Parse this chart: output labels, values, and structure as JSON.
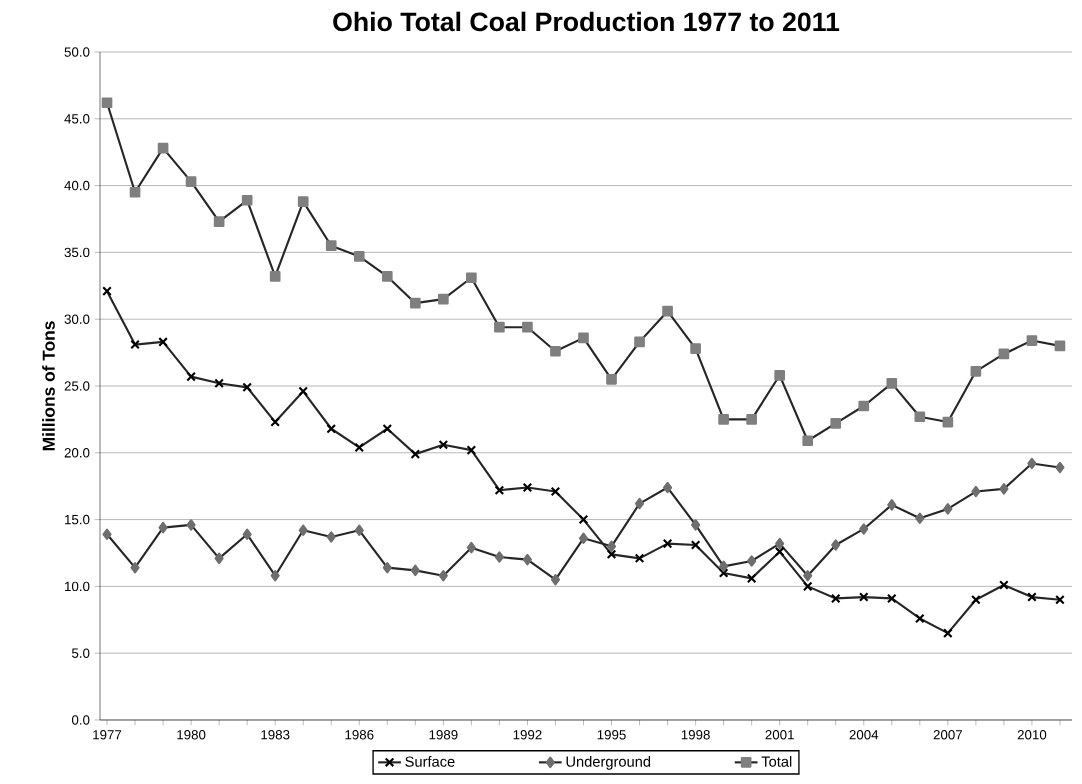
{
  "chart_data": {
    "type": "line",
    "title": "Ohio Total Coal Production   1977 to 2011",
    "ylabel": "Millions of Tons",
    "categories": [
      "1977",
      null,
      null,
      "1980",
      null,
      null,
      "1983",
      null,
      null,
      "1986",
      null,
      null,
      "1989",
      null,
      null,
      "1992",
      null,
      null,
      "1995",
      null,
      null,
      "1998",
      null,
      null,
      "2001",
      null,
      null,
      "2004",
      null,
      null,
      "2007",
      null,
      null,
      "2010",
      null
    ],
    "series": [
      {
        "name": "Surface",
        "color": "#333333",
        "marker": "cross",
        "values": [
          32.1,
          28.1,
          28.3,
          25.7,
          25.2,
          24.9,
          22.3,
          24.6,
          21.8,
          20.4,
          21.8,
          19.9,
          20.6,
          20.2,
          17.2,
          17.4,
          17.1,
          15.0,
          12.4,
          12.1,
          13.2,
          13.1,
          11.0,
          10.6,
          12.6,
          10.0,
          9.1,
          9.2,
          9.1,
          7.6,
          6.5,
          9.0,
          10.1,
          9.2,
          9.0
        ]
      },
      {
        "name": "Underground",
        "color": "#6e6e6e",
        "marker": "diamond",
        "values": [
          13.9,
          11.4,
          14.4,
          14.6,
          12.1,
          13.9,
          10.8,
          14.2,
          13.7,
          14.2,
          11.4,
          11.2,
          10.8,
          12.9,
          12.2,
          12.0,
          10.5,
          13.6,
          13.0,
          16.2,
          17.4,
          14.6,
          11.5,
          11.9,
          13.2,
          10.8,
          13.1,
          14.3,
          16.1,
          15.1,
          15.8,
          17.1,
          17.3,
          19.2,
          18.9
        ]
      },
      {
        "name": "Total",
        "color": "#7f7f7f",
        "marker": "square",
        "values": [
          46.2,
          39.5,
          42.8,
          40.3,
          37.3,
          38.9,
          33.2,
          38.8,
          35.5,
          34.7,
          33.2,
          31.2,
          31.5,
          33.1,
          29.4,
          29.4,
          27.6,
          28.6,
          25.5,
          28.3,
          30.6,
          27.8,
          22.5,
          22.5,
          25.8,
          20.9,
          22.2,
          23.5,
          25.2,
          22.7,
          22.3,
          26.1,
          27.4,
          28.4,
          28.0
        ]
      }
    ],
    "ylim": [
      0,
      50
    ],
    "yticks": [
      {
        "value": 0,
        "label": "0.0"
      },
      {
        "value": 5,
        "label": "5.0"
      },
      {
        "value": 10,
        "label": "10.0"
      },
      {
        "value": 15,
        "label": "15.0"
      },
      {
        "value": 20,
        "label": "20.0"
      },
      {
        "value": 25,
        "label": "25.0"
      },
      {
        "value": 30,
        "label": "30.0"
      },
      {
        "value": 35,
        "label": "35.0"
      },
      {
        "value": 40,
        "label": "40.0"
      },
      {
        "value": 45,
        "label": "45.0"
      },
      {
        "value": 50,
        "label": "50.0"
      }
    ],
    "grid": "y",
    "legend": "bottom",
    "line_style": "solid"
  }
}
